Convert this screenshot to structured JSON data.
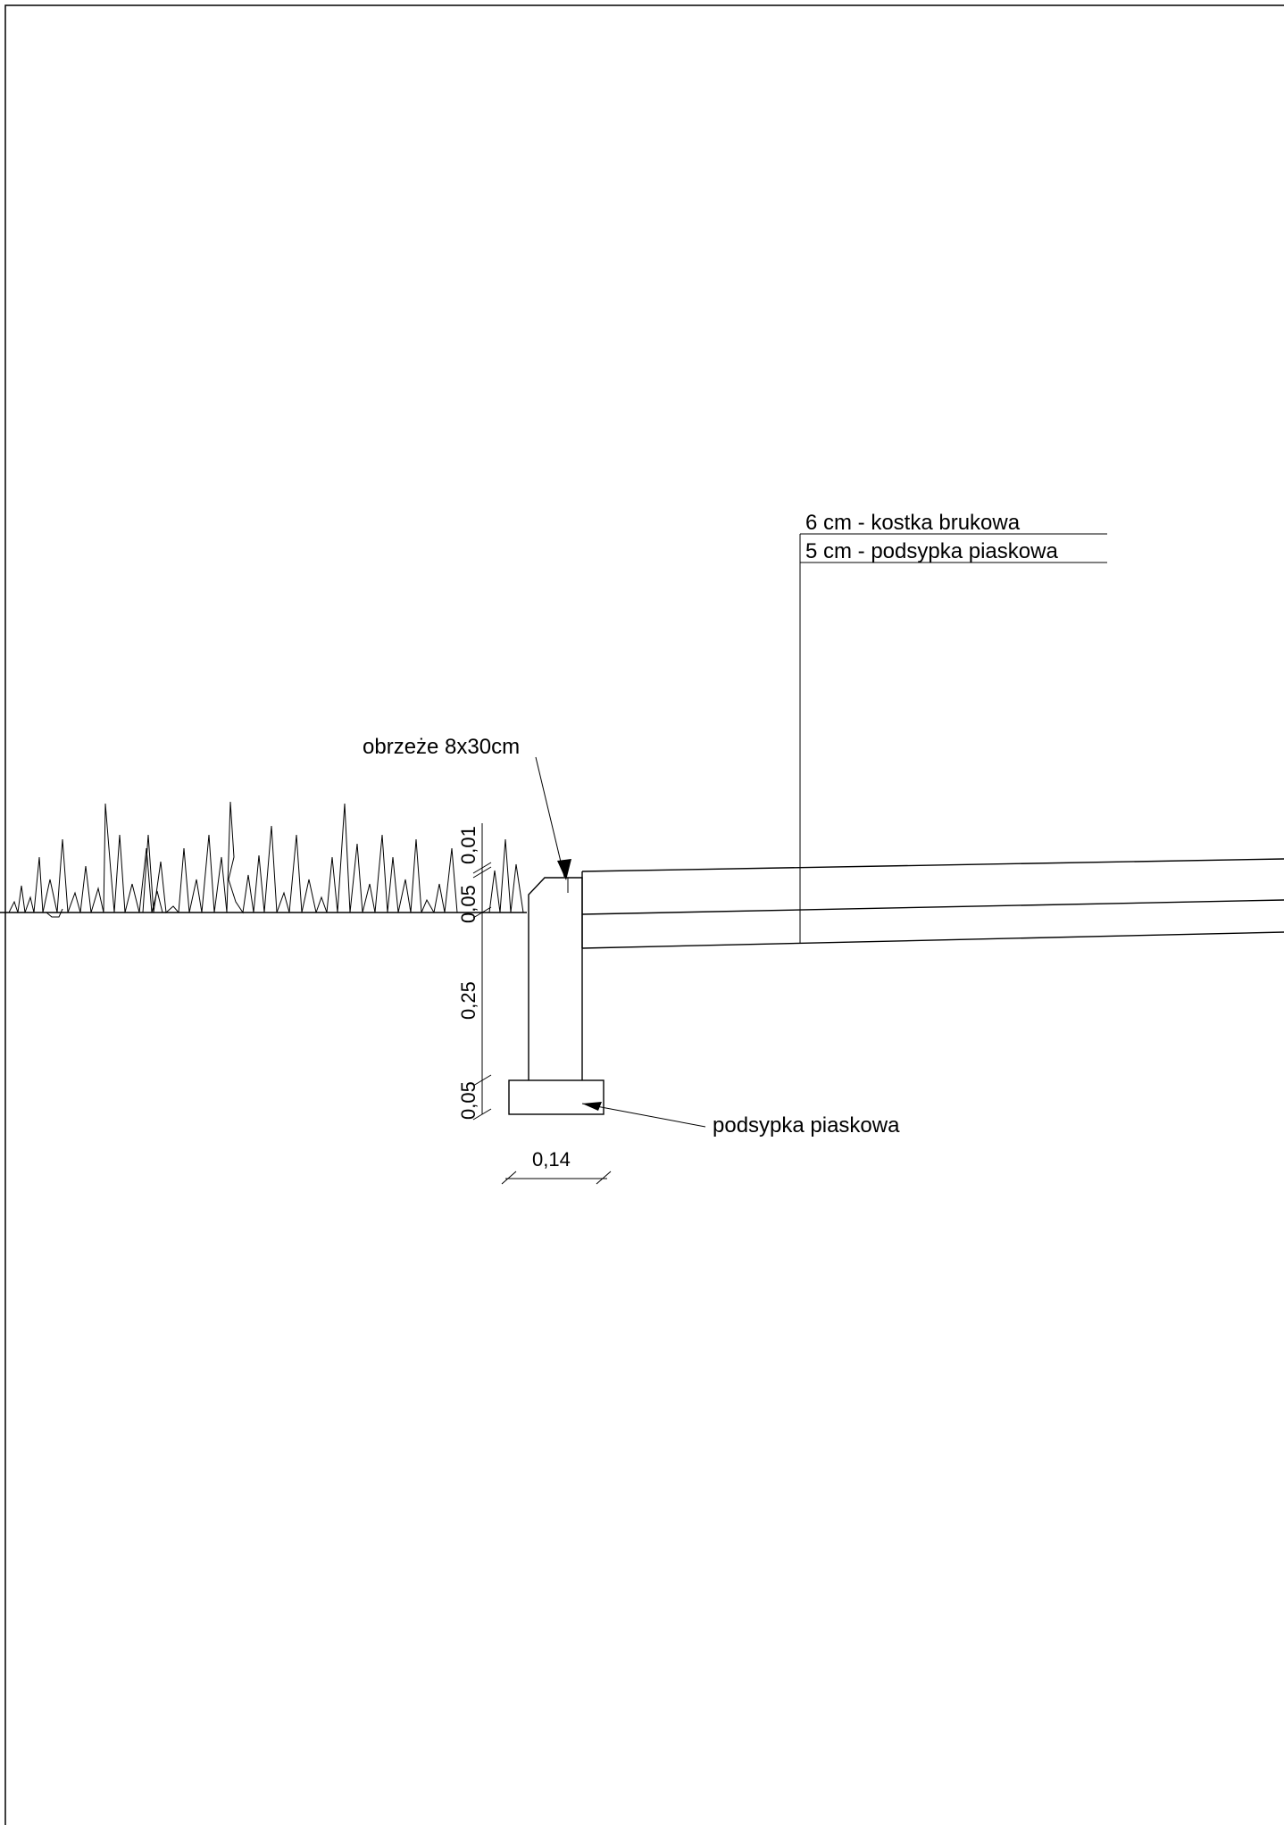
{
  "drawing": {
    "layers": {
      "paving": "6 cm - kostka brukowa",
      "bedding": "5 cm - podsypka piaskowa"
    },
    "curb_label": "obrzeże 8x30cm",
    "foundation_label": "podsypka piaskowa",
    "dimensions": {
      "vertical_top": "0,01",
      "vertical_second": "0,05",
      "vertical_middle": "0,25",
      "vertical_bottom": "0,05",
      "horizontal_width": "0,14"
    }
  }
}
